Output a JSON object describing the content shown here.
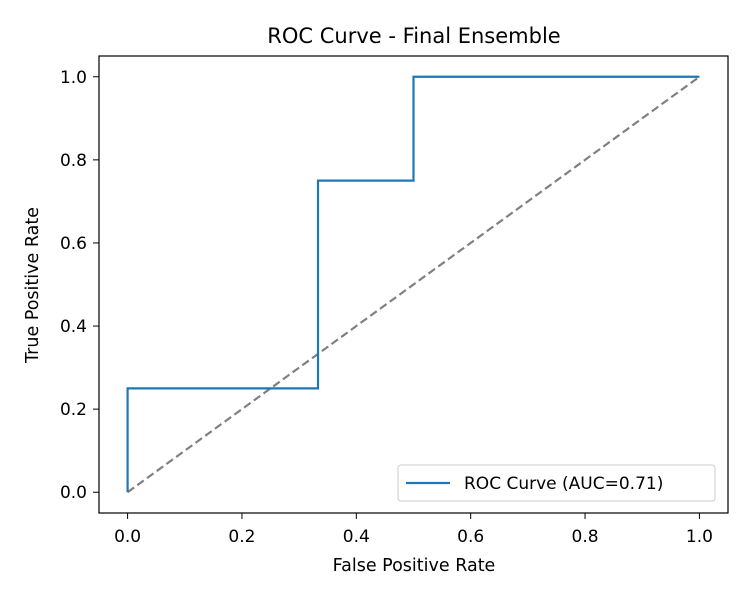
{
  "chart_data": {
    "type": "line",
    "title": "ROC Curve - Final Ensemble",
    "xlabel": "False Positive Rate",
    "ylabel": "True Positive Rate",
    "xlim": [
      -0.05,
      1.05
    ],
    "ylim": [
      -0.05,
      1.05
    ],
    "xticks": [
      0.0,
      0.2,
      0.4,
      0.6,
      0.8,
      1.0
    ],
    "yticks": [
      0.0,
      0.2,
      0.4,
      0.6,
      0.8,
      1.0
    ],
    "xtick_labels": [
      "0.0",
      "0.2",
      "0.4",
      "0.6",
      "0.8",
      "1.0"
    ],
    "ytick_labels": [
      "0.0",
      "0.2",
      "0.4",
      "0.6",
      "0.8",
      "1.0"
    ],
    "grid": false,
    "legend_position": "lower-right",
    "series": [
      {
        "name": "ROC Curve (AUC=0.71)",
        "color": "#1f77b4",
        "style": "solid",
        "x": [
          0.0,
          0.0,
          0.0,
          0.333,
          0.333,
          0.5,
          0.5,
          1.0
        ],
        "y": [
          0.0,
          0.25,
          0.25,
          0.25,
          0.75,
          0.75,
          1.0,
          1.0
        ]
      },
      {
        "color": "#808080",
        "style": "dashed",
        "x": [
          0.0,
          1.0
        ],
        "y": [
          0.0,
          1.0
        ]
      }
    ]
  }
}
